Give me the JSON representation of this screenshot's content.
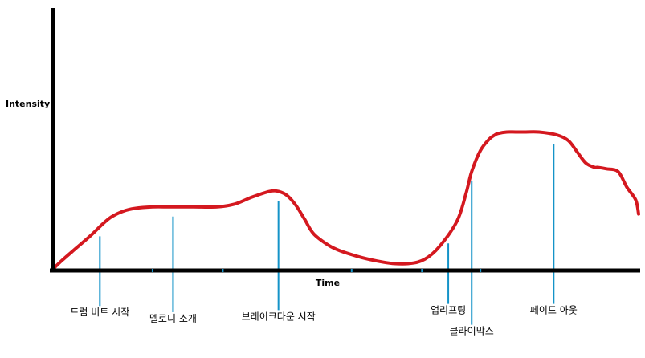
{
  "chart_data": {
    "type": "line",
    "title": "",
    "xlabel": "Time",
    "ylabel": "Intensity",
    "xlim": [
      0,
      100
    ],
    "ylim": [
      0,
      100
    ],
    "grid": false,
    "series": [
      {
        "values_x": [
          0,
          1.5,
          4,
          6.5,
          8.5,
          10,
          12,
          14,
          17,
          20,
          24,
          28,
          31,
          34,
          37,
          38.5,
          40,
          41.5,
          43,
          44.5,
          47,
          49,
          52,
          55,
          58,
          61,
          63.5,
          66,
          69,
          70.5,
          71.5,
          73,
          74.5,
          75.5,
          76,
          77.5,
          79,
          80.5,
          83,
          86,
          88,
          89.5,
          91,
          92.5,
          93,
          94.5,
          96.5,
          98,
          99.5,
          100
        ],
        "values_y": [
          1,
          7,
          16,
          25,
          33,
          38,
          42,
          44,
          45,
          45,
          45,
          45,
          47,
          52,
          56,
          56,
          53,
          46,
          36,
          26,
          18,
          14,
          10,
          7,
          5,
          5,
          8,
          17,
          35,
          54,
          70,
          85,
          93,
          96,
          97,
          98,
          98,
          98,
          98,
          96,
          92,
          84,
          76,
          73,
          73,
          72,
          70,
          59,
          50,
          40
        ]
      }
    ],
    "x_ticks": [
      17,
      29,
      51,
      63,
      73
    ],
    "events": [
      {
        "label": "드럼 비트 시작",
        "x": 8,
        "line_depth": 1.7
      },
      {
        "label": "멜로디 소개",
        "x": 20.5,
        "line_depth": 2.0
      },
      {
        "label": "브레이크다운 시작",
        "x": 38.5,
        "line_depth": 1.9
      },
      {
        "label": "업리프팅",
        "x": 67.5,
        "line_depth": 1.6
      },
      {
        "label": "클라이막스",
        "x": 71.5,
        "line_depth": 2.6
      },
      {
        "label": "페이드 아웃",
        "x": 85.5,
        "line_depth": 1.6
      }
    ],
    "colors": {
      "curve": "#d4181f",
      "event_line": "#1493c8",
      "axis": "#000000"
    }
  }
}
